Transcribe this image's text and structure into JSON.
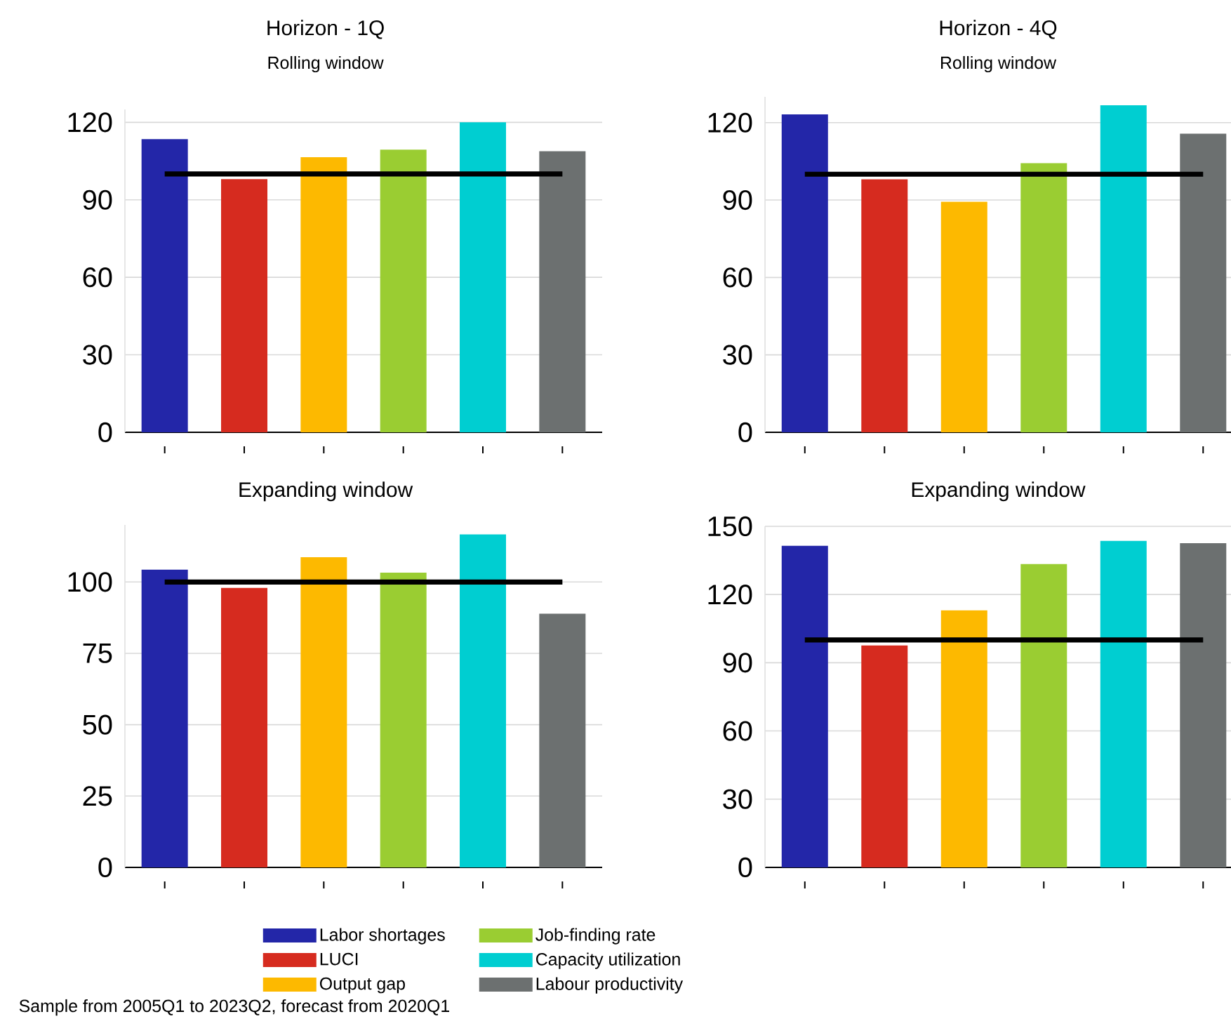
{
  "chart_data": [
    {
      "type": "bar",
      "title": "Horizon - 1Q",
      "subtitle": "Rolling window",
      "categories": [
        null,
        null,
        null,
        null,
        null,
        null
      ],
      "tick_labels": "y",
      "grid": "y",
      "ylim": [
        0,
        125
      ],
      "yticks": [
        0,
        30,
        60,
        90,
        120
      ],
      "series": [
        {
          "color": "#2326a8",
          "values": [
            113.5,
            null,
            null,
            null,
            null,
            null
          ]
        },
        {
          "color": "#d62b1f",
          "values": [
            null,
            98,
            null,
            null,
            null,
            null
          ]
        },
        {
          "color": "#fdb900",
          "values": [
            null,
            null,
            106.5,
            null,
            null,
            null
          ]
        },
        {
          "color": "#9acd32",
          "values": [
            null,
            null,
            null,
            109.4,
            null,
            null
          ]
        },
        {
          "color": "#00ced1",
          "values": [
            null,
            null,
            null,
            null,
            120,
            null
          ]
        },
        {
          "color": "#6c7070",
          "values": [
            null,
            null,
            null,
            null,
            null,
            108.8
          ]
        }
      ],
      "ref_lines": [
        {
          "axis": "y",
          "value": 100,
          "color": "#000000"
        }
      ]
    },
    {
      "type": "bar",
      "title": "Horizon - 4Q",
      "subtitle": "Rolling window",
      "categories": [
        null,
        null,
        null,
        null,
        null,
        null
      ],
      "tick_labels": "y",
      "grid": "y",
      "ylim": [
        0,
        130
      ],
      "yticks": [
        0,
        30,
        60,
        90,
        120
      ],
      "series": [
        {
          "color": "#2326a8",
          "values": [
            123.2,
            null,
            null,
            null,
            null,
            null
          ]
        },
        {
          "color": "#d62b1f",
          "values": [
            null,
            98,
            null,
            null,
            null,
            null
          ]
        },
        {
          "color": "#fdb900",
          "values": [
            null,
            null,
            89.3,
            null,
            null,
            null
          ]
        },
        {
          "color": "#9acd32",
          "values": [
            null,
            null,
            null,
            104.3,
            null,
            null
          ]
        },
        {
          "color": "#00ced1",
          "values": [
            null,
            null,
            null,
            null,
            126.7,
            null
          ]
        },
        {
          "color": "#6c7070",
          "values": [
            null,
            null,
            null,
            null,
            null,
            115.7
          ]
        }
      ],
      "ref_lines": [
        {
          "axis": "y",
          "value": 100,
          "color": "#000000"
        }
      ]
    },
    {
      "type": "bar",
      "title": "Expanding window",
      "categories": [
        null,
        null,
        null,
        null,
        null,
        null
      ],
      "tick_labels": "y",
      "grid": "y",
      "ylim": [
        0,
        120
      ],
      "yticks": [
        0,
        25,
        50,
        75,
        100
      ],
      "legend": "bottom",
      "series": [
        {
          "name": "Labor shortages",
          "color": "#2326a8",
          "values": [
            104.3,
            null,
            null,
            null,
            null,
            null
          ]
        },
        {
          "name": "LUCI",
          "color": "#d62b1f",
          "values": [
            null,
            97.9,
            null,
            null,
            null,
            null
          ]
        },
        {
          "name": "Output gap",
          "color": "#fdb900",
          "values": [
            null,
            null,
            108.7,
            null,
            null,
            null
          ]
        },
        {
          "name": "Job-finding rate",
          "color": "#9acd32",
          "values": [
            null,
            null,
            null,
            103.3,
            null,
            null
          ]
        },
        {
          "name": "Capacity utilization",
          "color": "#00ced1",
          "values": [
            null,
            null,
            null,
            null,
            116.7,
            null
          ]
        },
        {
          "name": "Labour productivity",
          "color": "#6c7070",
          "values": [
            null,
            null,
            null,
            null,
            null,
            88.9
          ]
        }
      ],
      "ref_lines": [
        {
          "axis": "y",
          "value": 100,
          "color": "#000000"
        }
      ],
      "annotations": [
        "Sample from 2005Q1 to 2023Q2, forecast from 2020Q1"
      ]
    },
    {
      "type": "bar",
      "title": "Expanding window",
      "categories": [
        null,
        null,
        null,
        null,
        null,
        null
      ],
      "tick_labels": "y",
      "grid": "y",
      "ylim": [
        0,
        150
      ],
      "yticks": [
        0,
        30,
        60,
        90,
        120,
        150
      ],
      "series": [
        {
          "color": "#2326a8",
          "values": [
            141.4,
            null,
            null,
            null,
            null,
            null
          ]
        },
        {
          "color": "#d62b1f",
          "values": [
            null,
            97.6,
            null,
            null,
            null,
            null
          ]
        },
        {
          "color": "#fdb900",
          "values": [
            null,
            null,
            113,
            null,
            null,
            null
          ]
        },
        {
          "color": "#9acd32",
          "values": [
            null,
            null,
            null,
            133.4,
            null,
            null
          ]
        },
        {
          "color": "#00ced1",
          "values": [
            null,
            null,
            null,
            null,
            143.6,
            null
          ]
        },
        {
          "color": "#6c7070",
          "values": [
            null,
            null,
            null,
            null,
            null,
            142.6
          ]
        }
      ],
      "ref_lines": [
        {
          "axis": "y",
          "value": 100,
          "color": "#000000"
        }
      ]
    }
  ]
}
